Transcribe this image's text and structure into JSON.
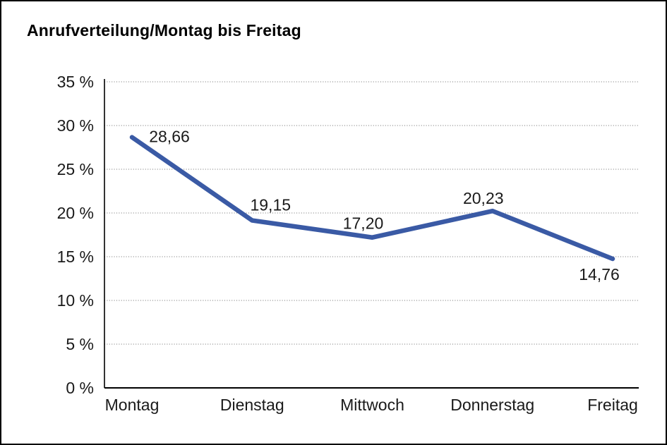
{
  "title": "Anrufverteilung/Montag bis Freitag",
  "chart_data": {
    "type": "line",
    "title": "Anrufverteilung/Montag bis Freitag",
    "categories": [
      "Montag",
      "Dienstag",
      "Mittwoch",
      "Donnerstag",
      "Freitag"
    ],
    "series": [
      {
        "name": "Anrufverteilung",
        "values": [
          28.66,
          19.15,
          17.2,
          20.23,
          14.76
        ],
        "data_labels": [
          "28,66",
          "19,15",
          "17,20",
          "20,23",
          "14,76"
        ]
      }
    ],
    "xlabel": "",
    "ylabel": "",
    "ylim": [
      0,
      35
    ],
    "ytick_step": 5,
    "ytick_labels": [
      "0 %",
      "5 %",
      "10 %",
      "15 %",
      "20 %",
      "25 %",
      "30 %",
      "35 %"
    ],
    "grid": "horizontal-dotted",
    "legend_position": "none",
    "colors": {
      "line": "#3A5AA5",
      "gridline": "#6e6e6e",
      "axis": "#000000",
      "text": "#1a1a1a",
      "background": "#ffffff",
      "border": "#000000"
    }
  }
}
